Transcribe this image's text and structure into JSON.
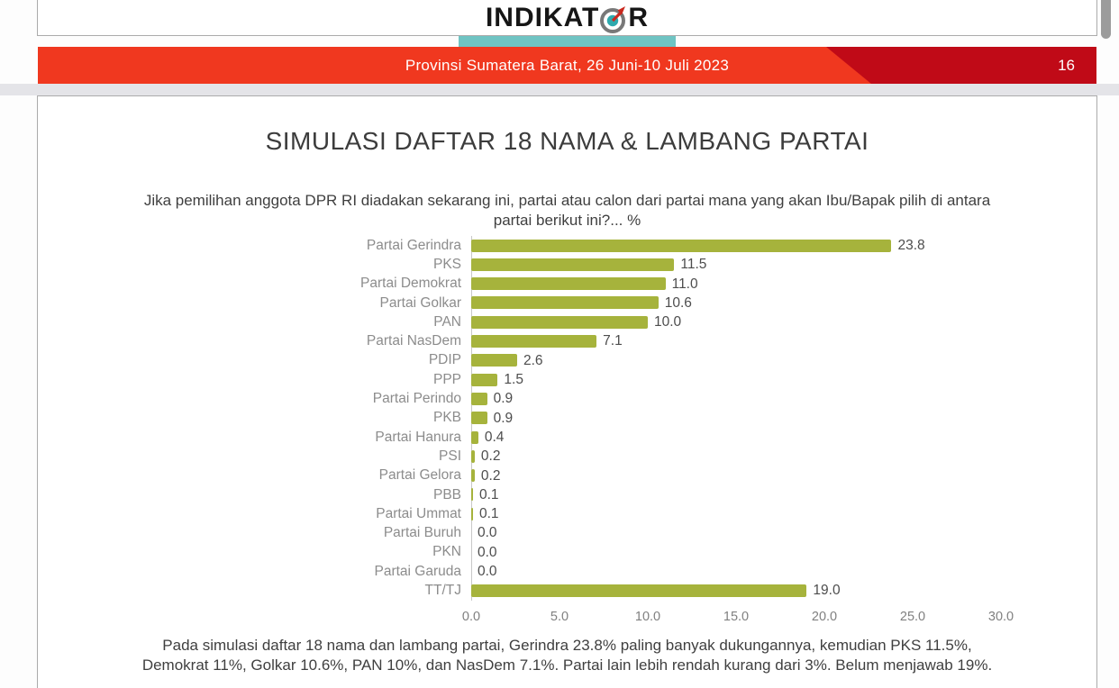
{
  "logo": {
    "text_left": "INDIKAT",
    "text_right": "R",
    "underline_color": "#6fc4c3",
    "compass_center_color": "#2ea9ad",
    "compass_ring_color": "#787878",
    "compass_needle_color": "#c9281e"
  },
  "banner": {
    "text": "Provinsi Sumatera Barat, 26 Juni-10 Juli 2023",
    "page_number": "16",
    "bg_color": "#f0381f",
    "accent_color": "#c00a17"
  },
  "slide": {
    "title": "SIMULASI DAFTAR 18 NAMA & LAMBANG PARTAI",
    "question_lines": [
      "Jika pemilihan anggota DPR RI diadakan sekarang ini, partai atau calon dari partai mana yang akan Ibu/Bapak pilih di antara",
      "partai berikut ini?... %"
    ],
    "footer_lines": [
      "Pada simulasi daftar 18 nama dan lambang partai, Gerindra 23.8% paling banyak dukungannya, kemudian PKS 11.5%,",
      "Demokrat 11%, Golkar 10.6%, PAN 10%, dan NasDem 7.1%. Partai lain lebih rendah kurang dari 3%. Belum menjawab 19%."
    ]
  },
  "chart_data": {
    "type": "bar",
    "orientation": "horizontal",
    "unit": "%",
    "categories": [
      "Partai Gerindra",
      "PKS",
      "Partai Demokrat",
      "Partai Golkar",
      "PAN",
      "Partai NasDem",
      "PDIP",
      "PPP",
      "Partai Perindo",
      "PKB",
      "Partai Hanura",
      "PSI",
      "Partai Gelora",
      "PBB",
      "Partai Ummat",
      "Partai Buruh",
      "PKN",
      "Partai Garuda",
      "TT/TJ"
    ],
    "values": [
      23.8,
      11.5,
      11.0,
      10.6,
      10.0,
      7.1,
      2.6,
      1.5,
      0.9,
      0.9,
      0.4,
      0.2,
      0.2,
      0.1,
      0.1,
      0.0,
      0.0,
      0.0,
      19.0
    ],
    "value_labels": [
      "23.8",
      "11.5",
      "11.0",
      "10.6",
      "10.0",
      "7.1",
      "2.6",
      "1.5",
      "0.9",
      "0.9",
      "0.4",
      "0.2",
      "0.2",
      "0.1",
      "0.1",
      "0.0",
      "0.0",
      "0.0",
      "19.0"
    ],
    "x_ticks": [
      "0.0",
      "5.0",
      "10.0",
      "15.0",
      "20.0",
      "25.0",
      "30.0"
    ],
    "xlim": [
      0,
      30
    ],
    "bar_color": "#a6b33c",
    "grid": false,
    "legend": "none"
  }
}
